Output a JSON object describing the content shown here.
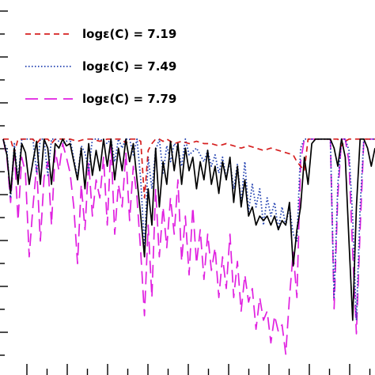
{
  "chart_data": {
    "type": "line",
    "title": "",
    "xlabel": "",
    "ylabel": "",
    "grid": false,
    "legend_placement": "top-left",
    "xlim": [
      0,
      100
    ],
    "ylim": [
      0,
      1.6
    ],
    "series": [
      {
        "name": "logε(C)  =  7.19",
        "color": "#d62020",
        "style": "dashed",
        "x": [
          0,
          2,
          3,
          4,
          6,
          8,
          9,
          10,
          12,
          13,
          14,
          16,
          18,
          20,
          22,
          24,
          26,
          28,
          29,
          30,
          31,
          32,
          33,
          34,
          35,
          36,
          37,
          38,
          39,
          40,
          41,
          42,
          43,
          44,
          45,
          46,
          48,
          50,
          52,
          54,
          56,
          58,
          60,
          62,
          64,
          66,
          68,
          70,
          72,
          74,
          76,
          78,
          79,
          80,
          81,
          82,
          84,
          86,
          88,
          90,
          91,
          92,
          93,
          94,
          95,
          96,
          97,
          98,
          100
        ],
        "y": [
          1.0,
          1.0,
          0.94,
          1.0,
          1.0,
          1.0,
          0.98,
          1.0,
          1.0,
          0.98,
          1.0,
          1.0,
          1.0,
          0.99,
          1.0,
          1.0,
          0.99,
          1.0,
          1.0,
          1.0,
          1.0,
          1.0,
          0.98,
          1.0,
          1.0,
          1.0,
          0.99,
          0.74,
          0.95,
          0.98,
          1.0,
          1.0,
          0.99,
          1.0,
          0.99,
          0.98,
          0.99,
          0.98,
          0.99,
          0.98,
          0.98,
          0.97,
          0.98,
          0.97,
          0.96,
          0.97,
          0.96,
          0.95,
          0.96,
          0.95,
          0.94,
          0.93,
          0.9,
          0.88,
          0.86,
          1.0,
          1.0,
          1.0,
          1.0,
          1.0,
          0.97,
          0.99,
          1.0,
          1.0,
          1.0,
          1.0,
          1.0,
          1.0,
          1.0
        ]
      },
      {
        "name": "logε(C)  =  7.49",
        "color": "#1f3fb0",
        "style": "dotted",
        "x": [
          0,
          1,
          2,
          3,
          4,
          5,
          6,
          8,
          9,
          10,
          11,
          12,
          13,
          14,
          16,
          18,
          20,
          21,
          22,
          23,
          24,
          26,
          28,
          29,
          30,
          31,
          32,
          33,
          34,
          35,
          36,
          37,
          38,
          39,
          40,
          41,
          42,
          43,
          44,
          45,
          46,
          47,
          48,
          49,
          50,
          52,
          54,
          55,
          56,
          57,
          58,
          59,
          60,
          61,
          62,
          63,
          64,
          65,
          66,
          67,
          68,
          69,
          70,
          71,
          72,
          73,
          74,
          75,
          76,
          77,
          78,
          79,
          80,
          81,
          82,
          84,
          86,
          88,
          89,
          90,
          91,
          92,
          93,
          94,
          95,
          96,
          97,
          98,
          100
        ],
        "y": [
          1.0,
          0.95,
          0.74,
          0.98,
          0.82,
          1.0,
          1.0,
          1.0,
          0.85,
          1.0,
          1.0,
          0.84,
          1.0,
          1.0,
          0.98,
          1.0,
          0.83,
          0.97,
          0.94,
          0.86,
          1.0,
          1.0,
          0.98,
          1.0,
          0.9,
          1.0,
          0.96,
          1.0,
          1.0,
          0.93,
          1.0,
          0.82,
          0.52,
          0.92,
          0.78,
          0.95,
          1.0,
          0.85,
          0.97,
          0.9,
          0.98,
          0.96,
          0.88,
          1.0,
          0.93,
          0.96,
          0.9,
          0.95,
          0.88,
          0.93,
          0.85,
          0.92,
          0.83,
          0.9,
          0.78,
          0.89,
          0.72,
          0.9,
          0.68,
          0.8,
          0.7,
          0.78,
          0.62,
          0.74,
          0.66,
          0.72,
          0.6,
          0.7,
          0.62,
          0.7,
          0.58,
          0.55,
          0.96,
          1.0,
          1.0,
          1.0,
          1.0,
          1.0,
          0.3,
          0.8,
          1.0,
          1.0,
          0.95,
          0.65,
          0.2,
          0.7,
          1.0,
          1.0,
          1.0
        ]
      },
      {
        "name": "logε(C)  =  7.79",
        "color": "#e020e0",
        "style": "long-dashed",
        "x": [
          0,
          1,
          2,
          3,
          4,
          5,
          6,
          7,
          8,
          9,
          10,
          11,
          12,
          13,
          14,
          15,
          16,
          17,
          18,
          19,
          20,
          21,
          22,
          23,
          24,
          25,
          26,
          27,
          28,
          29,
          30,
          31,
          32,
          33,
          34,
          35,
          36,
          37,
          38,
          39,
          40,
          41,
          42,
          43,
          44,
          45,
          46,
          47,
          48,
          49,
          50,
          51,
          52,
          53,
          54,
          55,
          56,
          57,
          58,
          59,
          60,
          61,
          62,
          63,
          64,
          65,
          66,
          67,
          68,
          69,
          70,
          71,
          72,
          73,
          74,
          75,
          76,
          77,
          78,
          79,
          80,
          81,
          82,
          84,
          86,
          88,
          89,
          90,
          91,
          92,
          93,
          94,
          95,
          96,
          97,
          98,
          100
        ],
        "y": [
          1.0,
          0.92,
          0.72,
          0.95,
          0.64,
          0.92,
          0.85,
          0.48,
          0.7,
          0.88,
          0.55,
          0.83,
          0.9,
          0.62,
          0.95,
          0.86,
          0.98,
          0.92,
          0.85,
          0.7,
          0.45,
          0.8,
          0.6,
          0.9,
          0.66,
          0.82,
          0.74,
          0.92,
          0.62,
          0.98,
          0.58,
          0.8,
          0.7,
          0.94,
          0.64,
          0.88,
          0.74,
          0.5,
          0.22,
          0.62,
          0.3,
          0.78,
          0.48,
          0.7,
          0.52,
          0.74,
          0.58,
          0.82,
          0.46,
          0.66,
          0.4,
          0.7,
          0.45,
          0.6,
          0.38,
          0.58,
          0.42,
          0.52,
          0.3,
          0.48,
          0.34,
          0.58,
          0.3,
          0.46,
          0.24,
          0.4,
          0.28,
          0.34,
          0.16,
          0.3,
          0.2,
          0.24,
          0.1,
          0.22,
          0.15,
          0.18,
          0.05,
          0.3,
          0.5,
          0.3,
          0.9,
          1.0,
          1.0,
          1.0,
          1.0,
          1.0,
          0.25,
          0.75,
          1.0,
          1.0,
          0.9,
          0.5,
          0.14,
          0.6,
          1.0,
          1.0,
          1.0
        ]
      },
      {
        "name": "",
        "color": "#000000",
        "style": "solid",
        "x": [
          0,
          1,
          2,
          3,
          4,
          5,
          6,
          7,
          8,
          9,
          10,
          11,
          12,
          13,
          14,
          15,
          16,
          17,
          18,
          19,
          20,
          21,
          22,
          23,
          24,
          25,
          26,
          27,
          28,
          29,
          30,
          31,
          32,
          33,
          34,
          35,
          36,
          37,
          38,
          39,
          40,
          41,
          42,
          43,
          44,
          45,
          46,
          47,
          48,
          49,
          50,
          51,
          52,
          53,
          54,
          55,
          56,
          57,
          58,
          59,
          60,
          61,
          62,
          63,
          64,
          65,
          66,
          67,
          68,
          69,
          70,
          71,
          72,
          73,
          74,
          75,
          76,
          77,
          78,
          79,
          80,
          81,
          82,
          83,
          84,
          86,
          88,
          89,
          90,
          91,
          92,
          93,
          94,
          95,
          96,
          97,
          98,
          99,
          100
        ],
        "y": [
          1.0,
          0.93,
          0.76,
          0.96,
          0.8,
          0.98,
          0.94,
          0.8,
          0.9,
          0.99,
          0.8,
          1.0,
          0.96,
          0.8,
          0.98,
          0.96,
          1.0,
          0.97,
          0.98,
          0.9,
          0.82,
          0.96,
          0.78,
          0.98,
          0.84,
          0.95,
          0.86,
          1.0,
          0.88,
          1.0,
          0.82,
          0.96,
          0.86,
          1.0,
          0.9,
          0.98,
          0.82,
          0.66,
          0.48,
          0.78,
          0.62,
          0.96,
          0.7,
          0.9,
          0.8,
          0.99,
          0.86,
          0.98,
          0.8,
          0.96,
          0.86,
          0.92,
          0.78,
          0.9,
          0.82,
          0.95,
          0.8,
          0.88,
          0.76,
          0.9,
          0.82,
          0.92,
          0.72,
          0.88,
          0.7,
          0.82,
          0.66,
          0.7,
          0.62,
          0.66,
          0.64,
          0.66,
          0.62,
          0.66,
          0.6,
          0.64,
          0.62,
          0.72,
          0.44,
          0.6,
          0.7,
          0.92,
          0.8,
          0.98,
          1.0,
          1.0,
          1.0,
          0.96,
          0.88,
          1.0,
          0.92,
          0.55,
          0.2,
          0.7,
          1.0,
          1.0,
          0.96,
          0.88,
          0.96
        ]
      }
    ]
  },
  "axes": {
    "left_tick_count": 16,
    "bottom_tick_count": 18
  }
}
